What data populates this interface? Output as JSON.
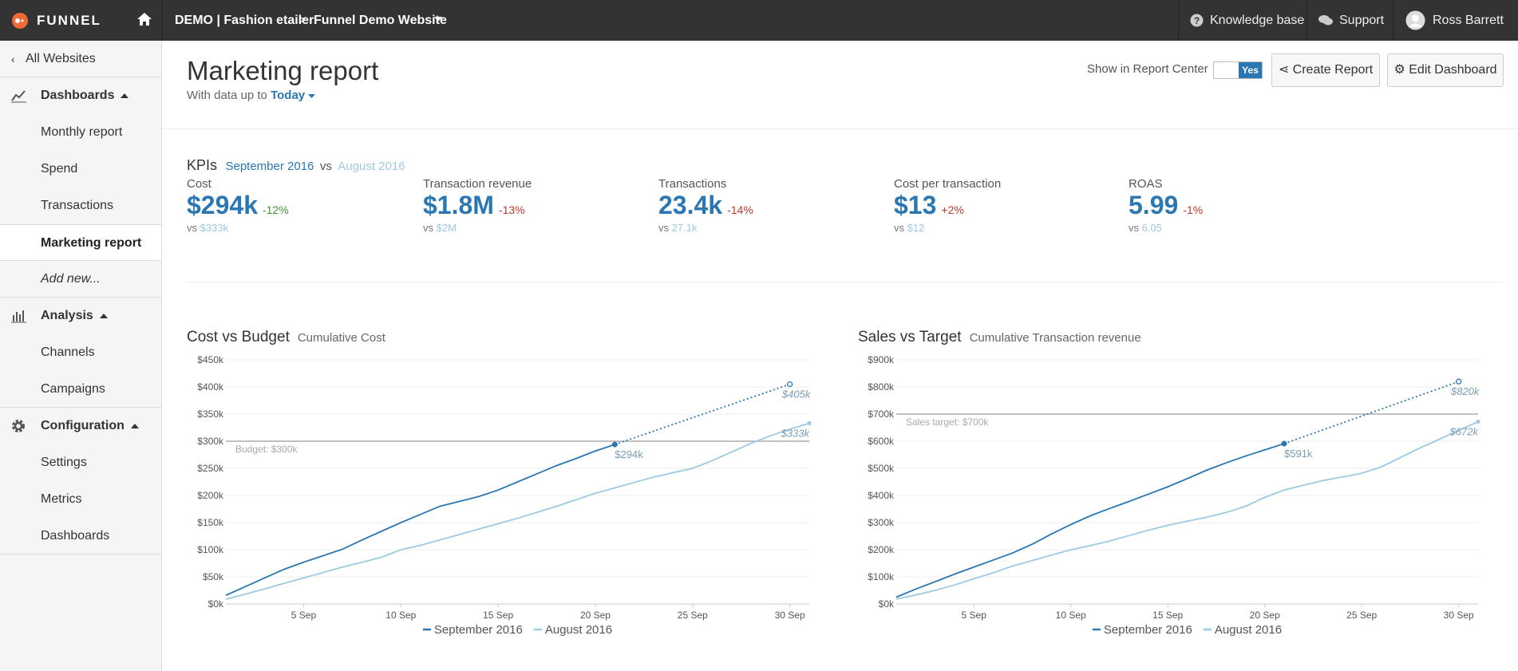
{
  "nav": {
    "brand": "FUNNEL",
    "account": "DEMO | Fashion etailer",
    "separator": ">",
    "website": "Funnel Demo Website",
    "links": [
      "Knowledge base",
      "Support"
    ],
    "user": "Ross Barrett"
  },
  "sidebar": {
    "back": "All Websites",
    "groups": [
      {
        "label": "Dashboards",
        "items": [
          "Monthly report",
          "Spend",
          "Transactions",
          {
            "label": "Marketing report",
            "active": true
          },
          {
            "label": "Add new...",
            "italic": true
          }
        ]
      },
      {
        "label": "Analysis",
        "items": [
          "Channels",
          "Campaigns"
        ]
      },
      {
        "label": "Configuration",
        "items": [
          "Settings",
          "Metrics",
          "Dashboards"
        ]
      }
    ]
  },
  "header": {
    "title": "Marketing report",
    "data_up_to": "With data up to",
    "date": "Today",
    "report_center": "Show in Report Center",
    "toggle": "Yes",
    "buttons": [
      "Create Report",
      "Edit Dashboard"
    ]
  },
  "kpis": {
    "label": "KPIs",
    "period": "September 2016",
    "vs": "vs",
    "compare": "August 2016",
    "good_color": "#3a9a3a",
    "bad_color": "#c0392b",
    "items": [
      {
        "name": "Cost",
        "value": "$294k",
        "change": "-12%",
        "good": true,
        "previous": "$333k"
      },
      {
        "name": "Transaction revenue",
        "value": "$1.8M",
        "change": "-13%",
        "good": false,
        "previous": "$2M"
      },
      {
        "name": "Transactions",
        "value": "23.4k",
        "change": "-14%",
        "good": false,
        "previous": "27.1k"
      },
      {
        "name": "Cost per transaction",
        "value": "$13",
        "change": "+2%",
        "good": false,
        "previous": "$12"
      },
      {
        "name": "ROAS",
        "value": "5.99",
        "change": "-1%",
        "good": false,
        "previous": "6.05"
      }
    ]
  },
  "chart_data": [
    {
      "type": "line",
      "title": "Cost vs Budget",
      "subtitle": "Cumulative Cost",
      "x": [
        1,
        2,
        3,
        4,
        5,
        6,
        7,
        8,
        9,
        10,
        11,
        12,
        13,
        14,
        15,
        16,
        17,
        18,
        19,
        20,
        21,
        22,
        23,
        24,
        25,
        26,
        27,
        28,
        29,
        30,
        31
      ],
      "xlim": [
        1,
        31
      ],
      "xticks": [
        {
          "value": 5,
          "label": "5 Sep"
        },
        {
          "value": 10,
          "label": "10 Sep"
        },
        {
          "value": 15,
          "label": "15 Sep"
        },
        {
          "value": 20,
          "label": "20 Sep"
        },
        {
          "value": 25,
          "label": "25 Sep"
        },
        {
          "value": 30,
          "label": "30 Sep"
        }
      ],
      "ylim": [
        0,
        450
      ],
      "yticks": [
        {
          "value": 0,
          "label": "$0k"
        },
        {
          "value": 50,
          "label": "$50k"
        },
        {
          "value": 100,
          "label": "$100k"
        },
        {
          "value": 150,
          "label": "$150k"
        },
        {
          "value": 200,
          "label": "$200k"
        },
        {
          "value": 250,
          "label": "$250k"
        },
        {
          "value": 300,
          "label": "$300k"
        },
        {
          "value": 350,
          "label": "$350k"
        },
        {
          "value": 400,
          "label": "$400k"
        },
        {
          "value": 450,
          "label": "$450k"
        }
      ],
      "grid": true,
      "legend": "bottom",
      "series": [
        {
          "name": "September 2016",
          "color": "#2a77b3",
          "values": [
            16,
            32,
            48,
            64,
            77,
            89,
            101,
            118,
            134,
            150,
            165,
            180,
            189,
            198,
            210,
            225,
            240,
            255,
            268,
            282,
            294,
            null,
            null,
            null,
            null,
            null,
            null,
            null,
            null,
            null,
            null
          ]
        },
        {
          "name": "August 2016",
          "color": "#9ecae1",
          "values": [
            9,
            18,
            28,
            38,
            48,
            58,
            68,
            77,
            86,
            100,
            108,
            118,
            128,
            138,
            148,
            158,
            169,
            180,
            192,
            204,
            214,
            224,
            234,
            242,
            250,
            264,
            280,
            296,
            310,
            322,
            333
          ]
        }
      ],
      "forecast": {
        "x": [
          21,
          30
        ],
        "values": [
          294,
          405
        ],
        "color": "#2a77b3",
        "style": "dotted"
      },
      "reference_line": {
        "value": 300,
        "label": "Budget: $300k",
        "color": "#aaaaaa"
      },
      "annotations": [
        {
          "x": 21,
          "value": 294,
          "label": "$294k",
          "marker": "filled"
        },
        {
          "x": 30,
          "value": 405,
          "label": "$405k",
          "marker": "hollow"
        },
        {
          "x": 31,
          "value": 333,
          "label": "$333k",
          "marker": "dot"
        }
      ]
    },
    {
      "type": "line",
      "title": "Sales vs Target",
      "subtitle": "Cumulative Transaction revenue",
      "x": [
        1,
        2,
        3,
        4,
        5,
        6,
        7,
        8,
        9,
        10,
        11,
        12,
        13,
        14,
        15,
        16,
        17,
        18,
        19,
        20,
        21,
        22,
        23,
        24,
        25,
        26,
        27,
        28,
        29,
        30,
        31
      ],
      "xlim": [
        1,
        31
      ],
      "xticks": [
        {
          "value": 5,
          "label": "5 Sep"
        },
        {
          "value": 10,
          "label": "10 Sep"
        },
        {
          "value": 15,
          "label": "15 Sep"
        },
        {
          "value": 20,
          "label": "20 Sep"
        },
        {
          "value": 25,
          "label": "25 Sep"
        },
        {
          "value": 30,
          "label": "30 Sep"
        }
      ],
      "ylim": [
        0,
        900
      ],
      "yticks": [
        {
          "value": 0,
          "label": "$0k"
        },
        {
          "value": 100,
          "label": "$100k"
        },
        {
          "value": 200,
          "label": "$200k"
        },
        {
          "value": 300,
          "label": "$300k"
        },
        {
          "value": 400,
          "label": "$400k"
        },
        {
          "value": 500,
          "label": "$500k"
        },
        {
          "value": 600,
          "label": "$600k"
        },
        {
          "value": 700,
          "label": "$700k"
        },
        {
          "value": 800,
          "label": "$800k"
        },
        {
          "value": 900,
          "label": "$900k"
        }
      ],
      "grid": true,
      "legend": "bottom",
      "series": [
        {
          "name": "September 2016",
          "color": "#2a77b3",
          "values": [
            25,
            55,
            82,
            110,
            136,
            162,
            188,
            220,
            258,
            293,
            325,
            352,
            378,
            405,
            432,
            462,
            493,
            520,
            545,
            568,
            591,
            null,
            null,
            null,
            null,
            null,
            null,
            null,
            null,
            null,
            null
          ]
        },
        {
          "name": "August 2016",
          "color": "#9ecae1",
          "values": [
            18,
            33,
            50,
            70,
            93,
            115,
            140,
            160,
            180,
            200,
            215,
            232,
            252,
            272,
            290,
            305,
            320,
            337,
            360,
            393,
            420,
            438,
            455,
            468,
            482,
            505,
            540,
            575,
            607,
            640,
            672
          ]
        }
      ],
      "forecast": {
        "x": [
          21,
          30
        ],
        "values": [
          591,
          820
        ],
        "color": "#2a77b3",
        "style": "dotted"
      },
      "reference_line": {
        "value": 700,
        "label": "Sales target: $700k",
        "color": "#aaaaaa"
      },
      "annotations": [
        {
          "x": 21,
          "value": 591,
          "label": "$591k",
          "marker": "filled"
        },
        {
          "x": 30,
          "value": 820,
          "label": "$820k",
          "marker": "hollow"
        },
        {
          "x": 31,
          "value": 672,
          "label": "$672k",
          "marker": "dot"
        }
      ]
    }
  ]
}
